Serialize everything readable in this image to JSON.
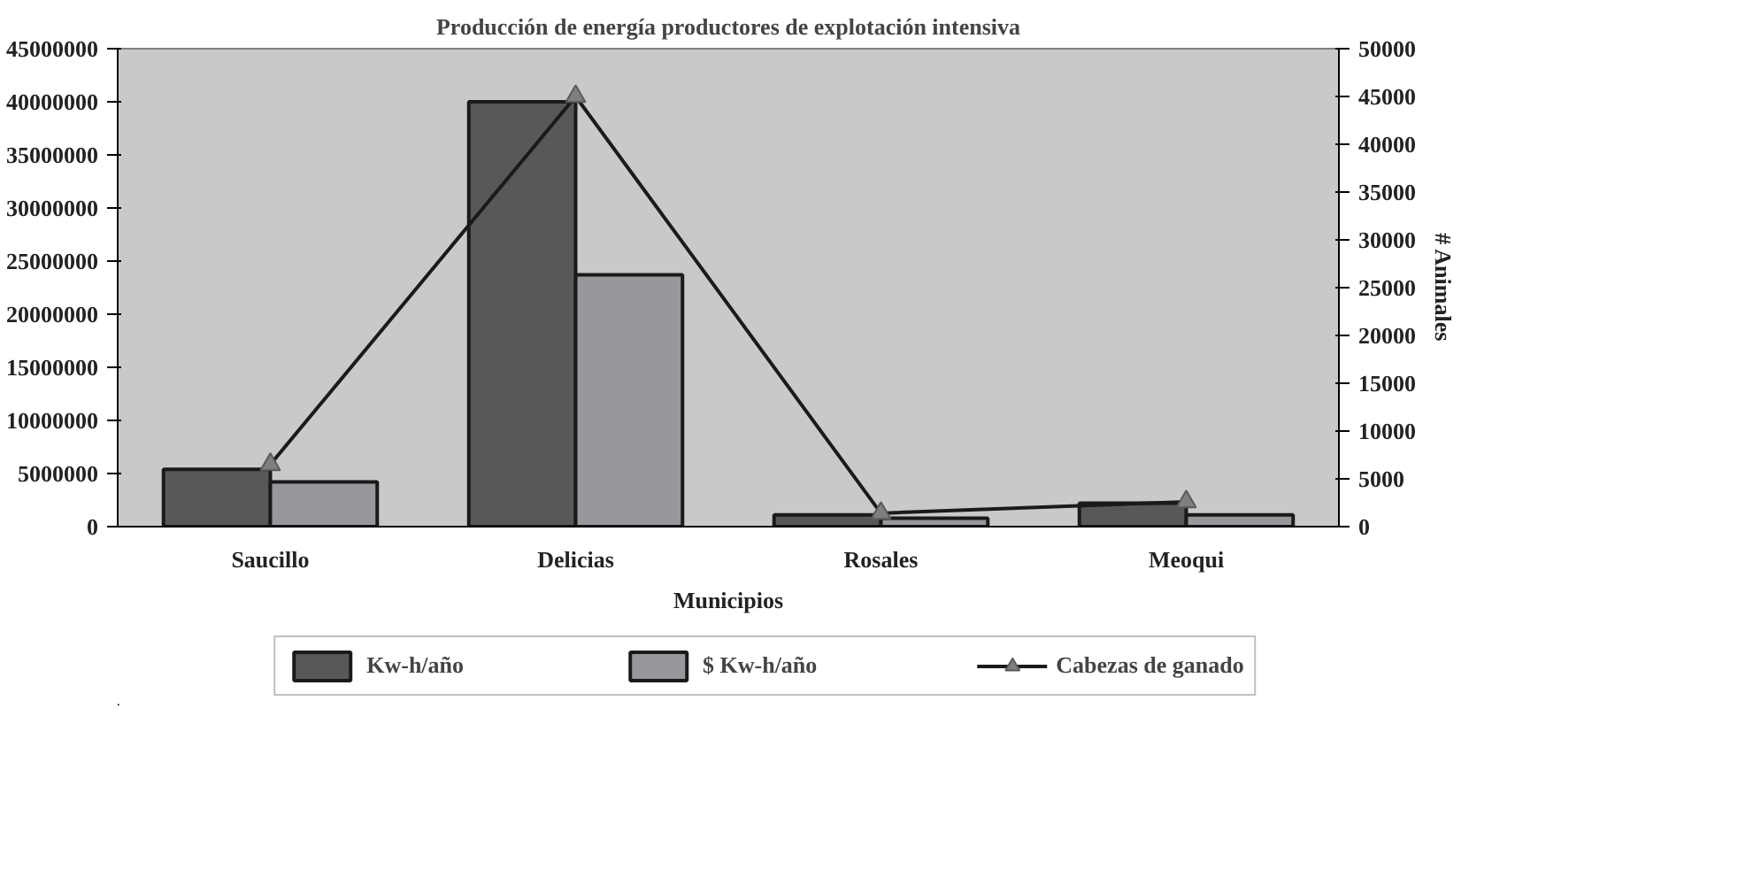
{
  "chart_data": {
    "type": "bar",
    "title": "Producción de energía productores de explotación intensiva",
    "xlabel": "Municipios",
    "y2label": "# Animales",
    "categories": [
      "Saucillo",
      "Delicias",
      "Rosales",
      "Meoqui"
    ],
    "series": [
      {
        "name": "Kw-h/año",
        "color": "#58585a",
        "values": [
          5400000,
          40000000,
          1100000,
          2200000
        ]
      },
      {
        "name": "$ Kw-h/año",
        "color": "#97989c",
        "values": [
          4200000,
          23700000,
          800000,
          1100000
        ]
      },
      {
        "name": "Cabezas de ganado",
        "type": "line",
        "axis": "y2",
        "color": "#1a1a1a",
        "marker": "triangle",
        "values": [
          6500,
          45000,
          1400,
          2600
        ]
      }
    ],
    "ylim": [
      0,
      45000000
    ],
    "yticks": [
      0,
      5000000,
      10000000,
      15000000,
      20000000,
      25000000,
      30000000,
      35000000,
      40000000,
      45000000
    ],
    "y2lim": [
      0,
      50000
    ],
    "y2ticks": [
      0,
      5000,
      10000,
      15000,
      20000,
      25000,
      30000,
      35000,
      40000,
      45000,
      50000
    ],
    "grid": false,
    "legend": "bottom"
  }
}
